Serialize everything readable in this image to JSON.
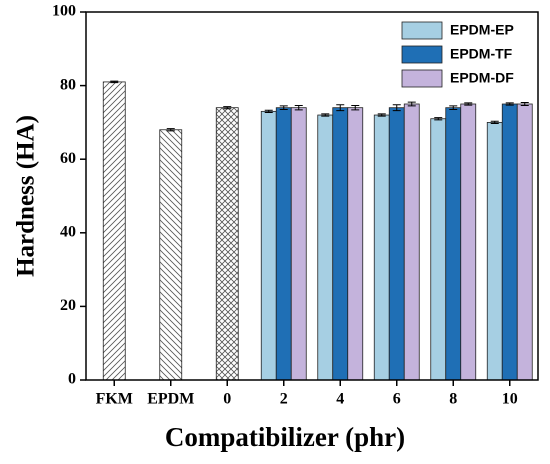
{
  "chart_data": {
    "type": "bar",
    "x_label": "Compatibilizer (phr)",
    "y_label": "Hardness (HA)",
    "categories": [
      "FKM",
      "EPDM",
      "0",
      "2",
      "4",
      "6",
      "8",
      "10"
    ],
    "single_values": [
      81,
      68,
      74,
      null,
      null,
      null,
      null,
      null
    ],
    "single_errors": [
      0.2,
      0.3,
      0.3,
      null,
      null,
      null,
      null,
      null
    ],
    "series": [
      {
        "name": "EPDM-EP",
        "color": "#a6cfe3",
        "values": [
          null,
          null,
          null,
          73,
          72,
          72,
          71,
          70
        ],
        "errors": [
          null,
          null,
          null,
          0.3,
          0.3,
          0.3,
          0.3,
          0.3
        ]
      },
      {
        "name": "EPDM-TF",
        "color": "#1f6fb5",
        "values": [
          null,
          null,
          null,
          74,
          74,
          74,
          74,
          75
        ],
        "errors": [
          null,
          null,
          null,
          0.5,
          0.8,
          0.8,
          0.5,
          0.3
        ]
      },
      {
        "name": "EPDM-DF",
        "color": "#c4b3dc",
        "values": [
          null,
          null,
          null,
          74,
          74,
          75,
          75,
          75
        ],
        "errors": [
          null,
          null,
          null,
          0.6,
          0.6,
          0.5,
          0.3,
          0.4
        ]
      }
    ],
    "ylim": [
      0,
      100
    ],
    "yticks": [
      0,
      20,
      40,
      60,
      80,
      100
    ],
    "legend": "upper right",
    "grid": false
  }
}
